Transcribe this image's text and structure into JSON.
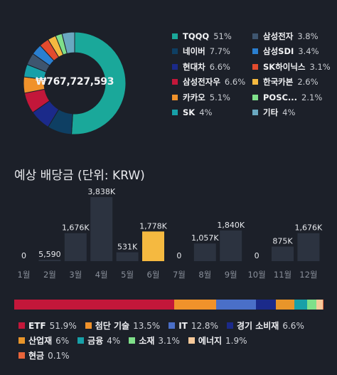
{
  "portfolio": {
    "total": "₩767,727,593",
    "holdings": [
      {
        "name": "TQQQ",
        "pct": "51%",
        "value": 51,
        "color": "#1aa89a"
      },
      {
        "name": "네이버",
        "pct": "7.7%",
        "value": 7.7,
        "color": "#0e3f63"
      },
      {
        "name": "현대차",
        "pct": "6.6%",
        "value": 6.6,
        "color": "#1b2a8a"
      },
      {
        "name": "삼성전자우",
        "pct": "6.6%",
        "value": 6.6,
        "color": "#c3173a"
      },
      {
        "name": "카카오",
        "pct": "5.1%",
        "value": 5.1,
        "color": "#f0922b"
      },
      {
        "name": "SK",
        "pct": "4%",
        "value": 4,
        "color": "#17a0a8"
      },
      {
        "name": "삼성전자",
        "pct": "3.8%",
        "value": 3.8,
        "color": "#3e556f"
      },
      {
        "name": "삼성SDI",
        "pct": "3.4%",
        "value": 3.4,
        "color": "#2a7fd0"
      },
      {
        "name": "SK하이닉스",
        "pct": "3.1%",
        "value": 3.1,
        "color": "#e34b2e"
      },
      {
        "name": "한국카본",
        "pct": "2.6%",
        "value": 2.6,
        "color": "#f5b940"
      },
      {
        "name": "POSC...",
        "pct": "2.1%",
        "value": 2.1,
        "color": "#7fe08a"
      },
      {
        "name": "기타",
        "pct": "4%",
        "value": 4,
        "color": "#6aa8c0"
      }
    ]
  },
  "dividends": {
    "title": "예상 배당금 (단위: KRW)",
    "accent": "#f5b940",
    "bar_color": "#2c3340",
    "months": [
      {
        "label": "1월",
        "value": 0,
        "text": "0"
      },
      {
        "label": "2월",
        "value": 5590,
        "text": "5,590"
      },
      {
        "label": "3월",
        "value": 1676000,
        "text": "1,676K"
      },
      {
        "label": "4월",
        "value": 3838000,
        "text": "3,838K"
      },
      {
        "label": "5월",
        "value": 531000,
        "text": "531K"
      },
      {
        "label": "6월",
        "value": 1778000,
        "text": "1,778K",
        "highlight": true
      },
      {
        "label": "7월",
        "value": 0,
        "text": "0"
      },
      {
        "label": "8월",
        "value": 1057000,
        "text": "1,057K"
      },
      {
        "label": "9월",
        "value": 1840000,
        "text": "1,840K"
      },
      {
        "label": "10월",
        "value": 0,
        "text": "0"
      },
      {
        "label": "11월",
        "value": 875000,
        "text": "875K"
      },
      {
        "label": "12월",
        "value": 1676000,
        "text": "1,676K"
      }
    ]
  },
  "sectors": [
    {
      "name": "ETF",
      "pct": "51.9%",
      "value": 51.9,
      "color": "#c3173a"
    },
    {
      "name": "첨단 기술",
      "pct": "13.5%",
      "value": 13.5,
      "color": "#f0922b"
    },
    {
      "name": "IT",
      "pct": "12.8%",
      "value": 12.8,
      "color": "#4a6fc8"
    },
    {
      "name": "경기 소비재",
      "pct": "6.6%",
      "value": 6.6,
      "color": "#1b2a8a"
    },
    {
      "name": "산업재",
      "pct": "6%",
      "value": 6,
      "color": "#e8952a"
    },
    {
      "name": "금융",
      "pct": "4%",
      "value": 4,
      "color": "#17a0a8"
    },
    {
      "name": "소재",
      "pct": "3.1%",
      "value": 3.1,
      "color": "#7fe08a"
    },
    {
      "name": "에너지",
      "pct": "1.9%",
      "value": 1.9,
      "color": "#f7c99a"
    },
    {
      "name": "현금",
      "pct": "0.1%",
      "value": 0.1,
      "color": "#e8643a"
    }
  ]
}
